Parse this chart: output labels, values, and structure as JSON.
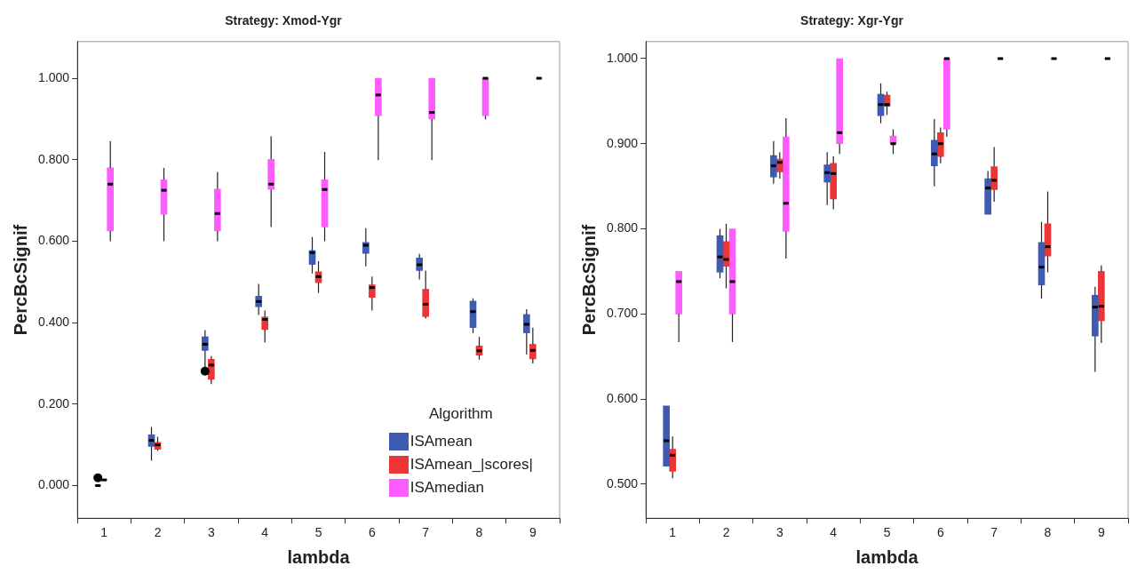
{
  "chart_data": [
    {
      "type": "box",
      "title": "Strategy: Xmod-Ygr",
      "xlabel": "lambda",
      "ylabel": "PercBcSignif",
      "categories": [
        "1",
        "2",
        "3",
        "4",
        "5",
        "6",
        "7",
        "8",
        "9"
      ],
      "ylim": [
        -0.08,
        1.09
      ],
      "yticks": [
        {
          "value": 0,
          "label": "0.000"
        },
        {
          "value": 0.2,
          "label": "0.200"
        },
        {
          "value": 0.4,
          "label": "0.400"
        },
        {
          "value": 0.6,
          "label": "0.600"
        },
        {
          "value": 0.8,
          "label": "0.800"
        },
        {
          "value": 1,
          "label": "1.000"
        }
      ],
      "legend": "bottom right",
      "legend_title": "Algorithm",
      "series": [
        {
          "name": "ISAmean",
          "color": "#3f5ab3",
          "boxes": [
            {
              "low": 0,
              "q1": 0,
              "median": 0,
              "q3": 0,
              "high": 0,
              "outliers": [
                0.019
              ]
            },
            {
              "low": 0.061,
              "q1": 0.096,
              "median": 0.111,
              "q3": 0.125,
              "high": 0.144
            },
            {
              "low": 0.29,
              "q1": 0.332,
              "median": 0.347,
              "q3": 0.365,
              "high": 0.382,
              "outliers": [
                0.281
              ]
            },
            {
              "low": 0.419,
              "q1": 0.439,
              "median": 0.452,
              "q3": 0.465,
              "high": 0.495
            },
            {
              "low": 0.521,
              "q1": 0.543,
              "median": 0.572,
              "q3": 0.577,
              "high": 0.61
            },
            {
              "low": 0.538,
              "q1": 0.57,
              "median": 0.59,
              "q3": 0.597,
              "high": 0.632
            },
            {
              "low": 0.506,
              "q1": 0.528,
              "median": 0.542,
              "q3": 0.559,
              "high": 0.569
            },
            {
              "low": 0.374,
              "q1": 0.388,
              "median": 0.427,
              "q3": 0.453,
              "high": 0.46
            },
            {
              "low": 0.322,
              "q1": 0.375,
              "median": 0.396,
              "q3": 0.42,
              "high": 0.433
            }
          ]
        },
        {
          "name": "ISAmean_|scores|",
          "color": "#ee3535",
          "boxes": [
            {
              "low": 0.014,
              "q1": 0.014,
              "median": 0.014,
              "q3": 0.014,
              "high": 0.014
            },
            {
              "low": 0.085,
              "q1": 0.089,
              "median": 0.1,
              "q3": 0.106,
              "high": 0.12
            },
            {
              "low": 0.249,
              "q1": 0.261,
              "median": 0.296,
              "q3": 0.31,
              "high": 0.318
            },
            {
              "low": 0.351,
              "q1": 0.383,
              "median": 0.408,
              "q3": 0.414,
              "high": 0.43
            },
            {
              "low": 0.473,
              "q1": 0.498,
              "median": 0.513,
              "q3": 0.525,
              "high": 0.551
            },
            {
              "low": 0.43,
              "q1": 0.462,
              "median": 0.486,
              "q3": 0.493,
              "high": 0.513
            },
            {
              "low": 0.41,
              "q1": 0.415,
              "median": 0.445,
              "q3": 0.482,
              "high": 0.528
            },
            {
              "low": 0.309,
              "q1": 0.32,
              "median": 0.331,
              "q3": 0.343,
              "high": 0.365
            },
            {
              "low": 0.3,
              "q1": 0.311,
              "median": 0.332,
              "q3": 0.347,
              "high": 0.388
            }
          ]
        },
        {
          "name": "ISAmedian",
          "color": "#ff5cff",
          "boxes": [
            {
              "low": 0.6,
              "q1": 0.625,
              "median": 0.74,
              "q3": 0.78,
              "high": 0.846
            },
            {
              "low": 0.6,
              "q1": 0.666,
              "median": 0.725,
              "q3": 0.751,
              "high": 0.78
            },
            {
              "low": 0.6,
              "q1": 0.625,
              "median": 0.668,
              "q3": 0.728,
              "high": 0.77
            },
            {
              "low": 0.635,
              "q1": 0.727,
              "median": 0.74,
              "q3": 0.801,
              "high": 0.858
            },
            {
              "low": 0.6,
              "q1": 0.635,
              "median": 0.727,
              "q3": 0.751,
              "high": 0.819
            },
            {
              "low": 0.799,
              "q1": 0.908,
              "median": 0.959,
              "q3": 1,
              "high": 1
            },
            {
              "low": 0.799,
              "q1": 0.9,
              "median": 0.916,
              "q3": 1,
              "high": 1
            },
            {
              "low": 0.899,
              "q1": 0.908,
              "median": 1,
              "q3": 1,
              "high": 1
            },
            {
              "low": 1,
              "q1": 1,
              "median": 1,
              "q3": 1,
              "high": 1
            }
          ]
        }
      ]
    },
    {
      "type": "box",
      "title": "Strategy: Xgr-Ygr",
      "xlabel": "lambda",
      "ylabel": "PercBcSignif",
      "categories": [
        "1",
        "2",
        "3",
        "4",
        "5",
        "6",
        "7",
        "8",
        "9"
      ],
      "ylim": [
        0.46,
        1.02
      ],
      "yticks": [
        {
          "value": 0.5,
          "label": "0.500"
        },
        {
          "value": 0.6,
          "label": "0.600"
        },
        {
          "value": 0.7,
          "label": "0.700"
        },
        {
          "value": 0.8,
          "label": "0.800"
        },
        {
          "value": 0.9,
          "label": "0.900"
        },
        {
          "value": 1,
          "label": "1.000"
        }
      ],
      "series": [
        {
          "color": "#3f5ab3",
          "boxes": [
            {
              "low": 0.521,
              "q1": 0.521,
              "median": 0.551,
              "q3": 0.592,
              "high": 0.592
            },
            {
              "low": 0.742,
              "q1": 0.749,
              "median": 0.767,
              "q3": 0.792,
              "high": 0.8
            },
            {
              "low": 0.853,
              "q1": 0.861,
              "median": 0.874,
              "q3": 0.886,
              "high": 0.903
            },
            {
              "low": 0.828,
              "q1": 0.855,
              "median": 0.866,
              "q3": 0.875,
              "high": 0.89
            },
            {
              "low": 0.924,
              "q1": 0.933,
              "median": 0.946,
              "q3": 0.958,
              "high": 0.971
            },
            {
              "low": 0.85,
              "q1": 0.874,
              "median": 0.888,
              "q3": 0.904,
              "high": 0.929
            },
            {
              "low": 0.817,
              "q1": 0.817,
              "median": 0.848,
              "q3": 0.859,
              "high": 0.868
            },
            {
              "low": 0.718,
              "q1": 0.734,
              "median": 0.755,
              "q3": 0.784,
              "high": 0.808
            },
            {
              "low": 0.632,
              "q1": 0.674,
              "median": 0.708,
              "q3": 0.722,
              "high": 0.732
            }
          ]
        },
        {
          "color": "#ee3535",
          "boxes": [
            {
              "low": 0.507,
              "q1": 0.515,
              "median": 0.534,
              "q3": 0.541,
              "high": 0.556
            },
            {
              "low": 0.73,
              "q1": 0.756,
              "median": 0.764,
              "q3": 0.785,
              "high": 0.806
            },
            {
              "low": 0.859,
              "q1": 0.867,
              "median": 0.878,
              "q3": 0.882,
              "high": 0.89
            },
            {
              "low": 0.823,
              "q1": 0.835,
              "median": 0.865,
              "q3": 0.877,
              "high": 0.885
            },
            {
              "low": 0.934,
              "q1": 0.944,
              "median": 0.946,
              "q3": 0.957,
              "high": 0.961
            },
            {
              "low": 0.877,
              "q1": 0.885,
              "median": 0.9,
              "q3": 0.913,
              "high": 0.919
            },
            {
              "low": 0.832,
              "q1": 0.846,
              "median": 0.857,
              "q3": 0.873,
              "high": 0.896
            },
            {
              "low": 0.749,
              "q1": 0.768,
              "median": 0.779,
              "q3": 0.806,
              "high": 0.844
            },
            {
              "low": 0.666,
              "q1": 0.692,
              "median": 0.709,
              "q3": 0.75,
              "high": 0.757
            }
          ]
        },
        {
          "color": "#ff5cff",
          "boxes": [
            {
              "low": 0.667,
              "q1": 0.7,
              "median": 0.738,
              "q3": 0.75,
              "high": 0.75
            },
            {
              "low": 0.667,
              "q1": 0.7,
              "median": 0.738,
              "q3": 0.8,
              "high": 0.8
            },
            {
              "low": 0.765,
              "q1": 0.797,
              "median": 0.83,
              "q3": 0.908,
              "high": 0.93
            },
            {
              "low": 0.888,
              "q1": 0.9,
              "median": 0.913,
              "q3": 1,
              "high": 1
            },
            {
              "low": 0.888,
              "q1": 0.9,
              "median": 0.9,
              "q3": 0.909,
              "high": 0.917
            },
            {
              "low": 0.908,
              "q1": 0.917,
              "median": 1,
              "q3": 1,
              "high": 1
            },
            {
              "low": 1,
              "q1": 1,
              "median": 1,
              "q3": 1,
              "high": 1
            },
            {
              "low": 1,
              "q1": 1,
              "median": 1,
              "q3": 1,
              "high": 1
            },
            {
              "low": 1,
              "q1": 1,
              "median": 1,
              "q3": 1,
              "high": 1
            }
          ]
        }
      ]
    }
  ]
}
